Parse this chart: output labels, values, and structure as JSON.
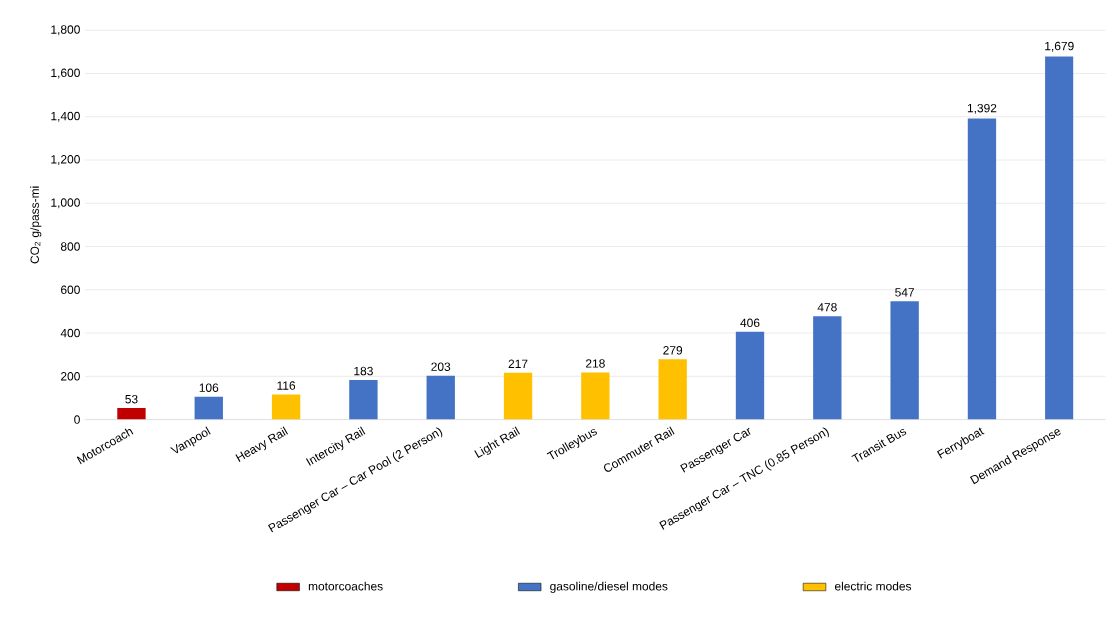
{
  "chart_data": {
    "type": "bar",
    "ylabel": "CO$_{2}$ g/pass-mi",
    "categories": [
      "Motorcoach",
      "Vanpool",
      "Heavy Rail",
      "Intercity Rail",
      "Passenger Car – Car Pool (2 Person)",
      "Light Rail",
      "Trolleybus",
      "Commuter Rail",
      "Passenger Car",
      "Passenger Car – TNC (0.85 Person)",
      "Transit Bus",
      "Ferryboat",
      "Demand Response"
    ],
    "series": [
      {
        "name": "motorcoaches",
        "color": "#c00000",
        "values": [
          53,
          null,
          null,
          null,
          null,
          null,
          null,
          null,
          null,
          null,
          null,
          null,
          null
        ],
        "value_labels": [
          "53",
          null,
          null,
          null,
          null,
          null,
          null,
          null,
          null,
          null,
          null,
          null,
          null
        ]
      },
      {
        "name": "gasoline/diesel modes",
        "color": "#4472c4",
        "values": [
          null,
          106,
          null,
          183,
          203,
          null,
          null,
          null,
          406,
          478,
          547,
          1392,
          1679
        ],
        "value_labels": [
          null,
          "106",
          null,
          "183",
          "203",
          null,
          null,
          null,
          "406",
          "478",
          "547",
          "1,392",
          "1,679"
        ]
      },
      {
        "name": "electric modes",
        "color": "#ffc000",
        "values": [
          null,
          null,
          116,
          null,
          null,
          217,
          218,
          279,
          null,
          null,
          null,
          null,
          null
        ],
        "value_labels": [
          null,
          null,
          "116",
          null,
          null,
          "217",
          "218",
          "279",
          null,
          null,
          null,
          null,
          null
        ]
      }
    ],
    "ylim": [
      0,
      1800
    ],
    "yticks": [
      0,
      200,
      400,
      600,
      800,
      {
        "value": 1000,
        "label": "1,000"
      },
      {
        "value": 1200,
        "label": "1,200"
      },
      {
        "value": 1400,
        "label": "1,400"
      },
      {
        "value": 1600,
        "label": "1,600"
      },
      {
        "value": 1800,
        "label": "1,800"
      }
    ],
    "grid": "y",
    "legend": "bottom"
  }
}
